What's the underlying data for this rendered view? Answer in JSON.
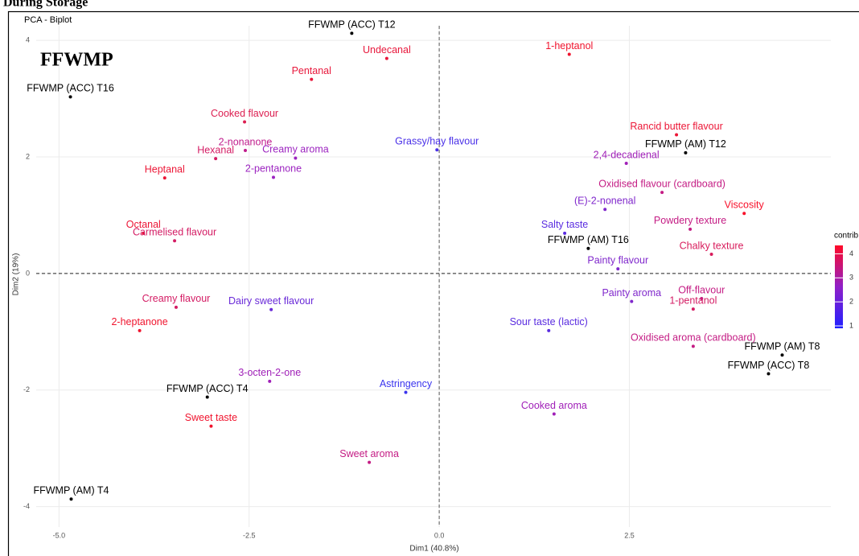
{
  "chart_data": {
    "type": "scatter",
    "caption": "During Storage",
    "title": "PCA - Biplot",
    "annotation": "FFWMP",
    "x_label": "Dim1 (40.8%)",
    "y_label": "Dim2 (19%)",
    "xlim": [
      -5.3,
      5.15
    ],
    "ylim": [
      -4.35,
      4.25
    ],
    "xticks": [
      {
        "value": -5,
        "label": "-5.0"
      },
      {
        "value": -2.5,
        "label": "-2.5"
      },
      {
        "value": 0,
        "label": "0.0"
      },
      {
        "value": 2.5,
        "label": "2.5"
      }
    ],
    "yticks": [
      -4,
      -2,
      0,
      2,
      4
    ],
    "grid": true,
    "colorbar": {
      "title": "contrib",
      "lim": [
        0.9,
        4.35
      ],
      "ticks": [
        1,
        2,
        3,
        4
      ],
      "colors": [
        "#2020ff",
        "#9020c8",
        "#ff0a28"
      ]
    },
    "points": [
      {
        "label": "FFWMP (ACC) T12",
        "x": -1.15,
        "y": 4.12,
        "color": "#000000"
      },
      {
        "label": "FFWMP (ACC) T16",
        "x": -4.85,
        "y": 3.03,
        "color": "#000000"
      },
      {
        "label": "FFWMP (AM) T12",
        "x": 3.24,
        "y": 2.07,
        "color": "#000000"
      },
      {
        "label": "FFWMP (AM) T16",
        "x": 1.96,
        "y": 0.43,
        "color": "#000000"
      },
      {
        "label": "FFWMP (AM) T8",
        "x": 4.51,
        "y": -1.4,
        "color": "#000000"
      },
      {
        "label": "FFWMP (ACC) T8",
        "x": 4.33,
        "y": -1.72,
        "color": "#000000"
      },
      {
        "label": "FFWMP (ACC) T4",
        "x": -3.05,
        "y": -2.12,
        "color": "#000000"
      },
      {
        "label": "FFWMP (AM) T4",
        "x": -4.84,
        "y": -3.87,
        "color": "#000000"
      },
      {
        "label": "1-heptanol",
        "x": 1.71,
        "y": 3.76,
        "color": "#f0142e"
      },
      {
        "label": "Pentanal",
        "x": -1.68,
        "y": 3.33,
        "color": "#e8183c"
      },
      {
        "label": "Undecanal",
        "x": -0.69,
        "y": 3.69,
        "color": "#e8183c"
      },
      {
        "label": "Cooked flavour",
        "x": -2.56,
        "y": 2.6,
        "color": "#dc1e50"
      },
      {
        "label": "Rancid butter flavour",
        "x": 3.12,
        "y": 2.38,
        "color": "#ec1636"
      },
      {
        "label": "Grassy/hay flavour",
        "x": -0.03,
        "y": 2.12,
        "color": "#4a30e8"
      },
      {
        "label": "2,4-decadienal",
        "x": 2.46,
        "y": 1.89,
        "color": "#a020b8"
      },
      {
        "label": "2-nonanone",
        "x": -2.55,
        "y": 2.11,
        "color": "#c01c8c"
      },
      {
        "label": "Hexanal",
        "x": -2.94,
        "y": 1.97,
        "color": "#d41c64"
      },
      {
        "label": "Creamy aroma",
        "x": -1.89,
        "y": 1.98,
        "color": "#9c24c0"
      },
      {
        "label": "Heptanal",
        "x": -3.61,
        "y": 1.64,
        "color": "#ec1636"
      },
      {
        "label": "2-pentanone",
        "x": -2.18,
        "y": 1.65,
        "color": "#9c24c0"
      },
      {
        "label": "Oxidised flavour (cardboard)",
        "x": 2.93,
        "y": 1.39,
        "color": "#c41c84"
      },
      {
        "label": "Viscosity",
        "x": 4.01,
        "y": 1.03,
        "color": "#f8102a"
      },
      {
        "label": "(E)-2-nonenal",
        "x": 2.18,
        "y": 1.1,
        "color": "#8028cc"
      },
      {
        "label": "Octanal",
        "x": -3.89,
        "y": 0.69,
        "color": "#ec1636"
      },
      {
        "label": "Carmelised flavour",
        "x": -3.48,
        "y": 0.56,
        "color": "#d41c64"
      },
      {
        "label": "Powdery texture",
        "x": 3.3,
        "y": 0.76,
        "color": "#c41c84"
      },
      {
        "label": "Salty taste",
        "x": 1.65,
        "y": 0.69,
        "color": "#5a2ce0"
      },
      {
        "label": "Painty flavour",
        "x": 2.35,
        "y": 0.08,
        "color": "#8028cc"
      },
      {
        "label": "Chalky texture",
        "x": 3.58,
        "y": 0.33,
        "color": "#d81c5c"
      },
      {
        "label": "Painty aroma",
        "x": 2.53,
        "y": -0.48,
        "color": "#8028cc"
      },
      {
        "label": "Off-flavour",
        "x": 3.45,
        "y": -0.43,
        "color": "#c41c84"
      },
      {
        "label": "Dairy sweet flavour",
        "x": -2.21,
        "y": -0.62,
        "color": "#6a2ad8"
      },
      {
        "label": "Creamy flavour",
        "x": -3.46,
        "y": -0.58,
        "color": "#d41c64"
      },
      {
        "label": "1-pentanol",
        "x": 3.34,
        "y": -0.61,
        "color": "#d41c64"
      },
      {
        "label": "Sour taste (lactic)",
        "x": 1.44,
        "y": -0.98,
        "color": "#5a2ce0"
      },
      {
        "label": "2-heptanone",
        "x": -3.94,
        "y": -0.98,
        "color": "#f0142e"
      },
      {
        "label": "Oxidised aroma (cardboard)",
        "x": 3.34,
        "y": -1.25,
        "color": "#c41c84"
      },
      {
        "label": "3-octen-2-one",
        "x": -2.23,
        "y": -1.85,
        "color": "#a020b8"
      },
      {
        "label": "Astringency",
        "x": -0.44,
        "y": -2.04,
        "color": "#3a34ee"
      },
      {
        "label": "Cooked aroma",
        "x": 1.51,
        "y": -2.41,
        "color": "#a020b8"
      },
      {
        "label": "Sweet taste",
        "x": -3.0,
        "y": -2.62,
        "color": "#f0142e"
      },
      {
        "label": "Sweet aroma",
        "x": -0.92,
        "y": -3.24,
        "color": "#c41c84"
      }
    ]
  }
}
